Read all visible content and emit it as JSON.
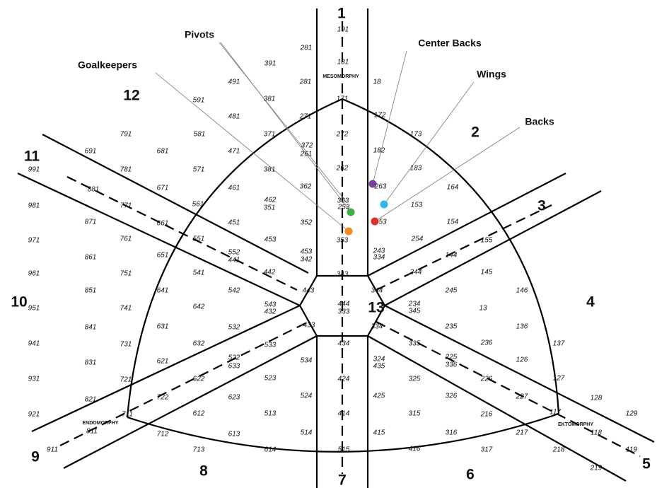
{
  "sectors": [
    "1",
    "2",
    "3",
    "4",
    "5",
    "6",
    "7",
    "8",
    "9",
    "10",
    "11",
    "12",
    "13"
  ],
  "somatotypes": [
    "MESOMORPHY",
    "ENDOMORPHY",
    "EKTOMORPHY"
  ],
  "positions": [
    "Pivots",
    "Center Backs",
    "Wings",
    "Backs",
    "Goalkeepers"
  ],
  "codes": [
    "191",
    "281",
    "391",
    "181",
    "281",
    "18",
    "491",
    "591",
    "381",
    "171",
    "172",
    "481",
    "271",
    "791",
    "581",
    "371",
    "272",
    "173",
    "691",
    "681",
    "471",
    "372",
    "261",
    "182",
    "991",
    "781",
    "571",
    "381",
    "262",
    "183",
    "881",
    "671",
    "461",
    "362",
    "263",
    "164",
    "981",
    "771",
    "561",
    "462",
    "351",
    "363",
    "253",
    "153",
    "871",
    "661",
    "451",
    "352",
    "53",
    "154",
    "971",
    "761",
    "551",
    "453",
    "353",
    "254",
    "155",
    "861",
    "651",
    "552",
    "441",
    "453",
    "342",
    "243",
    "334",
    "144",
    "961",
    "751",
    "541",
    "442",
    "343",
    "244",
    "145",
    "851",
    "641",
    "542",
    "443",
    "344",
    "245",
    "146",
    "951",
    "741",
    "642",
    "543",
    "432",
    "444",
    "333",
    "234",
    "345",
    "13",
    "841",
    "631",
    "532",
    "433",
    "334",
    "235",
    "136",
    "941",
    "731",
    "632",
    "533",
    "434",
    "335",
    "236",
    "137",
    "831",
    "621",
    "522",
    "633",
    "534",
    "324",
    "435",
    "225",
    "336",
    "126",
    "931",
    "721",
    "622",
    "523",
    "424",
    "325",
    "226",
    "127",
    "821",
    "722",
    "623",
    "524",
    "425",
    "326",
    "227",
    "128",
    "921",
    "711",
    "612",
    "513",
    "414",
    "315",
    "216",
    "117",
    "129",
    "811",
    "712",
    "613",
    "514",
    "415",
    "316",
    "217",
    "118",
    "911",
    "713",
    "614",
    "515",
    "416",
    "317",
    "218",
    "119",
    "219"
  ]
}
